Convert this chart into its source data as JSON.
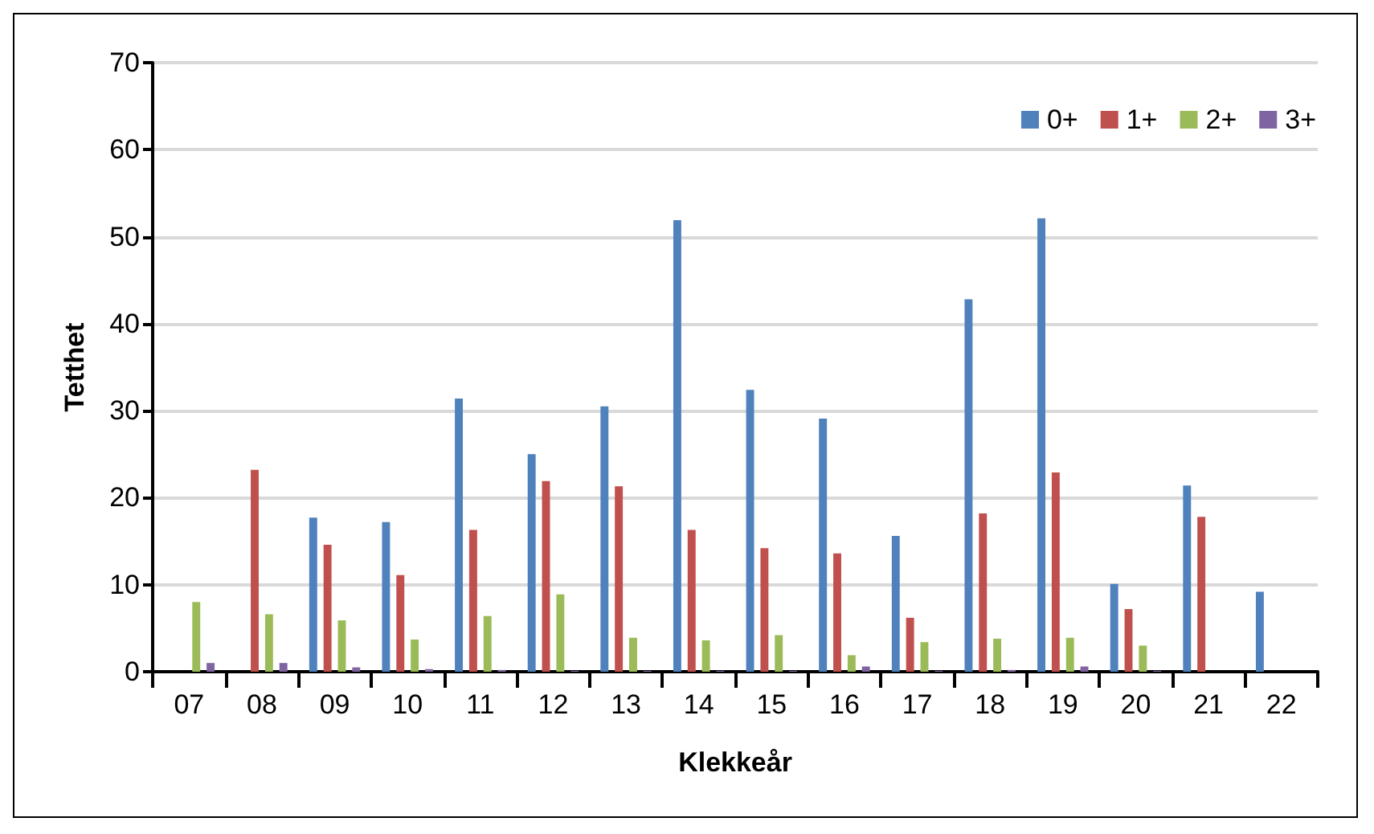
{
  "chart_data": {
    "type": "bar",
    "xlabel": "Klekkeår",
    "ylabel": "Tetthet",
    "categories": [
      "07",
      "08",
      "09",
      "10",
      "11",
      "12",
      "13",
      "14",
      "15",
      "16",
      "17",
      "18",
      "19",
      "20",
      "21",
      "22"
    ],
    "series": [
      {
        "name": "0+",
        "color": "#4f81bd",
        "values": [
          null,
          null,
          17.7,
          17.2,
          31.4,
          25,
          30.5,
          51.9,
          32.4,
          29.1,
          15.6,
          42.8,
          52.1,
          10.1,
          21.4,
          9.2
        ]
      },
      {
        "name": "1+",
        "color": "#c0504d",
        "values": [
          null,
          23.2,
          14.6,
          11.1,
          16.3,
          21.9,
          21.3,
          16.3,
          14.2,
          13.6,
          6.2,
          18.2,
          22.9,
          7.2,
          17.8,
          null
        ]
      },
      {
        "name": "2+",
        "color": "#9bbb59",
        "values": [
          8.0,
          6.6,
          5.9,
          3.7,
          6.4,
          8.9,
          3.9,
          3.6,
          4.2,
          1.9,
          3.4,
          3.8,
          3.9,
          3.0,
          null,
          null
        ]
      },
      {
        "name": "3+",
        "color": "#8064a2",
        "values": [
          1.0,
          1.0,
          0.5,
          0.3,
          0.2,
          0.1,
          0.1,
          0.1,
          0.1,
          0.6,
          0.1,
          0.2,
          0.6,
          0.1,
          null,
          null
        ]
      }
    ],
    "ylim": [
      0,
      70
    ],
    "yticks": [
      0,
      10,
      20,
      30,
      40,
      50,
      60,
      70
    ],
    "grid": "y",
    "legend": "top right"
  }
}
